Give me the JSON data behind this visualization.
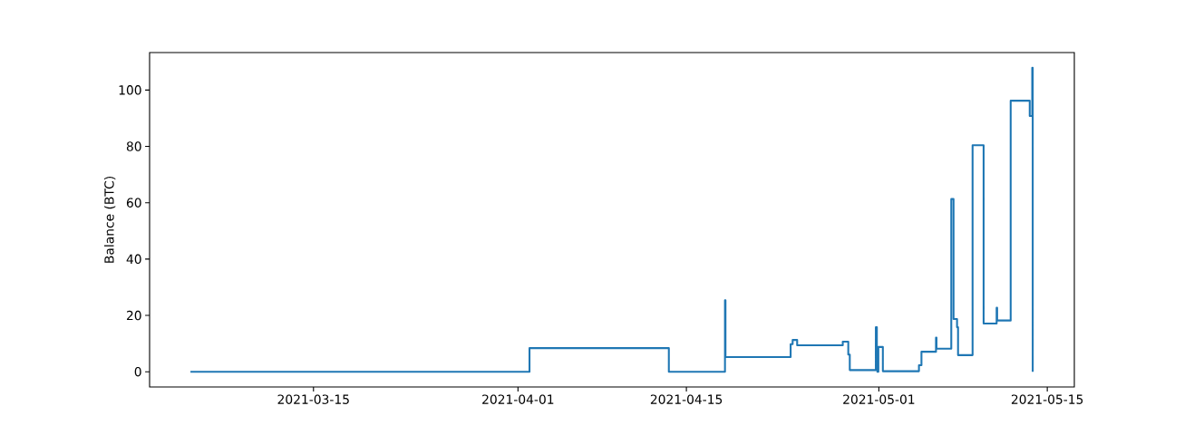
{
  "chart_data": {
    "type": "step",
    "ylabel": "Balance (BTC)",
    "x": [
      "2021-03-04T18:30",
      "2021-04-01T23:00",
      "2021-04-13T13:00",
      "2021-04-18T05:00",
      "2021-04-18T06:00",
      "2021-04-23T16:00",
      "2021-04-23T20:00",
      "2021-04-24T05:00",
      "2021-04-28T00:00",
      "2021-04-28T11:00",
      "2021-04-28T14:00",
      "2021-04-30T18:00",
      "2021-04-30T20:00",
      "2021-04-30T21:00",
      "2021-04-30T23:00",
      "2021-05-01T08:00",
      "2021-05-04T08:00",
      "2021-05-04T13:00",
      "2021-05-05T18:00",
      "2021-05-05T19:00",
      "2021-05-07T00:30",
      "2021-05-07T05:00",
      "2021-05-07T12:00",
      "2021-05-07T14:00",
      "2021-05-08T19:00",
      "2021-05-09T17:00",
      "2021-05-10T19:00",
      "2021-05-10T20:00",
      "2021-05-11T23:00",
      "2021-05-13T13:00",
      "2021-05-13T18:00",
      "2021-05-13T19:00"
    ],
    "series": [
      {
        "color": "#1f77b4",
        "values": [
          0,
          8.4,
          0,
          25.4,
          5.2,
          9.8,
          11.3,
          9.4,
          10.7,
          6.1,
          0.6,
          15.8,
          3.6,
          0,
          8.8,
          0.2,
          2.3,
          7.1,
          12.1,
          8.2,
          61.3,
          18.7,
          15.8,
          5.9,
          80.4,
          17.1,
          22.7,
          18.2,
          96.2,
          90.8,
          107.9,
          0
        ]
      }
    ],
    "xlim": [
      "2021-03-01T09:00",
      "2021-05-17T06:00"
    ],
    "xticks": [
      "2021-03-15",
      "2021-04-01",
      "2021-04-15",
      "2021-05-01",
      "2021-05-15"
    ],
    "ylim": [
      -5.4,
      113.3
    ],
    "yticks": [
      0,
      20,
      40,
      60,
      80,
      100
    ],
    "grid": false,
    "line_style": "solid",
    "marker": "none"
  }
}
